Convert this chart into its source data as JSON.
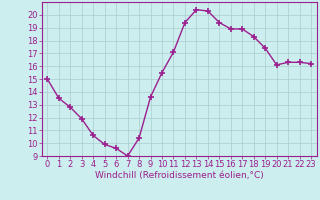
{
  "x": [
    0,
    1,
    2,
    3,
    4,
    5,
    6,
    7,
    8,
    9,
    10,
    11,
    12,
    13,
    14,
    15,
    16,
    17,
    18,
    19,
    20,
    21,
    22,
    23
  ],
  "y": [
    15,
    13.5,
    12.8,
    11.9,
    10.6,
    9.9,
    9.6,
    9.0,
    10.4,
    13.6,
    15.5,
    17.1,
    19.4,
    20.4,
    20.3,
    19.4,
    18.9,
    18.9,
    18.3,
    17.4,
    16.1,
    16.3,
    16.3,
    16.2
  ],
  "line_color": "#9b1f8e",
  "marker": "+",
  "marker_size": 4,
  "marker_linewidth": 1.2,
  "bg_color": "#cceeee",
  "grid_color": "#aacccc",
  "xlabel": "Windchill (Refroidissement éolien,°C)",
  "xlabel_fontsize": 6.5,
  "tick_fontsize": 6,
  "ylim": [
    9,
    21
  ],
  "xlim": [
    -0.5,
    23.5
  ],
  "yticks": [
    9,
    10,
    11,
    12,
    13,
    14,
    15,
    16,
    17,
    18,
    19,
    20
  ],
  "xticks": [
    0,
    1,
    2,
    3,
    4,
    5,
    6,
    7,
    8,
    9,
    10,
    11,
    12,
    13,
    14,
    15,
    16,
    17,
    18,
    19,
    20,
    21,
    22,
    23
  ],
  "line_width": 1.0
}
